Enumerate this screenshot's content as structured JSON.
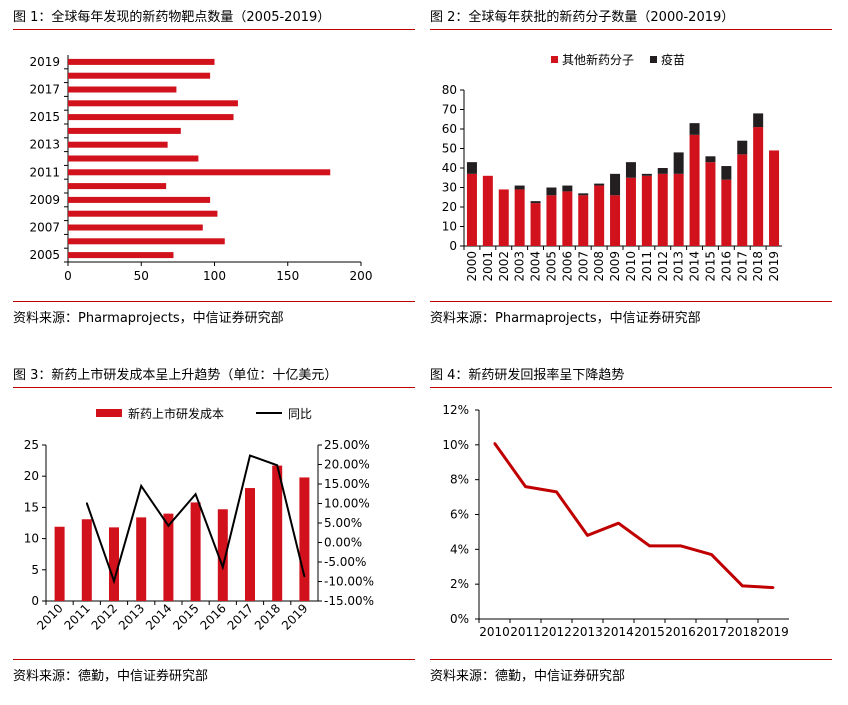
{
  "colors": {
    "accent": "#c00000",
    "bar": "#d1111b",
    "vaccine": "#231f20",
    "line": "#c00000",
    "yoy": "#000000"
  },
  "figure1": {
    "title": "图 1：全球每年发现的新药物靶点数量（2005-2019）",
    "source": "资料来源：Pharmaprojects，中信证券研究部",
    "chart_data": {
      "type": "bar",
      "orientation": "horizontal",
      "categories": [
        "2005",
        "2006",
        "2007",
        "2008",
        "2009",
        "2010",
        "2011",
        "2012",
        "2013",
        "2014",
        "2015",
        "2016",
        "2017",
        "2018",
        "2019"
      ],
      "values": [
        72,
        107,
        92,
        102,
        97,
        67,
        179,
        89,
        68,
        77,
        113,
        116,
        74,
        97,
        100
      ],
      "tick_labels_shown": [
        "2005",
        "2007",
        "2009",
        "2011",
        "2013",
        "2015",
        "2017",
        "2019"
      ],
      "xlim": [
        0,
        200
      ],
      "xticks": [
        0,
        50,
        100,
        150,
        200
      ],
      "xlabel": "",
      "ylabel": ""
    }
  },
  "figure2": {
    "title": "图 2：全球每年获批的新药分子数量（2000-2019）",
    "source": "资料来源：Pharmaprojects，中信证券研究部",
    "chart_data": {
      "type": "bar",
      "stacked": true,
      "categories": [
        "2000",
        "2001",
        "2002",
        "2003",
        "2004",
        "2005",
        "2006",
        "2007",
        "2008",
        "2009",
        "2010",
        "2011",
        "2012",
        "2013",
        "2014",
        "2015",
        "2016",
        "2017",
        "2018",
        "2019"
      ],
      "series": [
        {
          "name": "其他新药分子",
          "values": [
            37,
            36,
            29,
            29,
            22,
            26,
            28,
            26,
            31,
            26,
            35,
            36,
            37,
            37,
            57,
            43,
            34,
            47,
            61,
            49
          ]
        },
        {
          "name": "疫苗",
          "values": [
            6,
            0,
            0,
            2,
            1,
            4,
            3,
            1,
            1,
            11,
            8,
            1,
            3,
            11,
            6,
            3,
            7,
            7,
            7,
            0
          ]
        }
      ],
      "ylim": [
        0,
        80
      ],
      "yticks": [
        0,
        10,
        20,
        30,
        40,
        50,
        60,
        70,
        80
      ],
      "legend": "top"
    }
  },
  "figure3": {
    "title": "图 3：新药上市研发成本呈上升趋势（单位：十亿美元）",
    "source": "资料来源：德勤，中信证券研究部",
    "chart_data": {
      "type": "bar",
      "categories": [
        "2010",
        "2011",
        "2012",
        "2013",
        "2014",
        "2015",
        "2016",
        "2017",
        "2018",
        "2019"
      ],
      "series": [
        {
          "name": "新药上市研发成本",
          "type": "bar",
          "axis": "left",
          "values": [
            11.9,
            13.1,
            11.8,
            13.4,
            14.0,
            15.8,
            14.7,
            18.1,
            21.7,
            19.8
          ]
        },
        {
          "name": "同比",
          "type": "line",
          "axis": "right",
          "values": [
            null,
            10.1,
            -9.9,
            14.5,
            4.3,
            12.4,
            -6.3,
            22.3,
            19.8,
            -8.7
          ]
        }
      ],
      "ylim_left": [
        0,
        25
      ],
      "yticks_left": [
        0,
        5,
        10,
        15,
        20,
        25
      ],
      "ylim_right": [
        -15,
        25
      ],
      "yticks_right_labels": [
        "-15.00%",
        "-10.00%",
        "-5.00%",
        "0.00%",
        "5.00%",
        "10.00%",
        "15.00%",
        "20.00%",
        "25.00%"
      ],
      "legend": "top"
    }
  },
  "figure4": {
    "title": "图 4：新药研发回报率呈下降趋势",
    "source": "资料来源：德勤，中信证券研究部",
    "chart_data": {
      "type": "line",
      "x": [
        "2010",
        "2011",
        "2012",
        "2013",
        "2014",
        "2015",
        "2016",
        "2017",
        "2018",
        "2019"
      ],
      "values": [
        10.1,
        7.6,
        7.3,
        4.8,
        5.5,
        4.2,
        4.2,
        3.7,
        1.9,
        1.8
      ],
      "ylim": [
        0,
        12
      ],
      "ytick_labels": [
        "0%",
        "2%",
        "4%",
        "6%",
        "8%",
        "10%",
        "12%"
      ]
    }
  }
}
